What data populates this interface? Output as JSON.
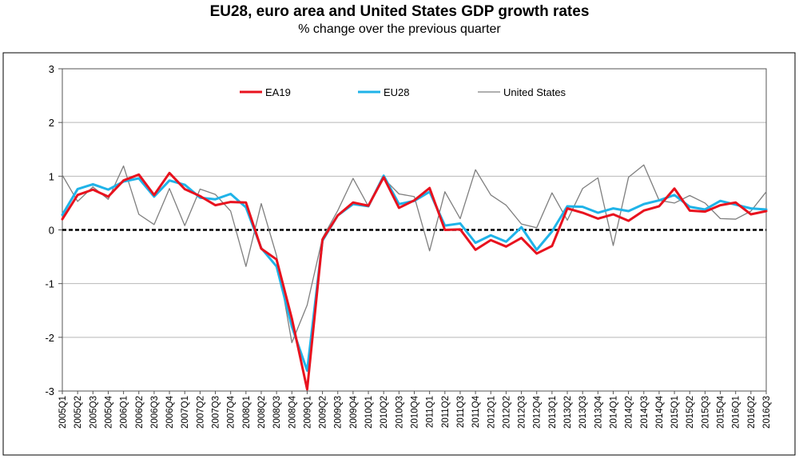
{
  "chart_data": {
    "type": "line",
    "title": "EU28, euro area and United States GDP growth rates",
    "subtitle": "% change over the previous quarter",
    "xlabel": "",
    "ylabel": "",
    "ylim": [
      -3,
      3
    ],
    "yticks": [
      "3",
      "2",
      "1",
      "0",
      "-1",
      "-2",
      "-3"
    ],
    "grid": true,
    "legend_position": "top",
    "categories": [
      "2005Q1",
      "2005Q2",
      "2005Q3",
      "2005Q4",
      "2006Q1",
      "2006Q2",
      "2006Q3",
      "2006Q4",
      "2007Q1",
      "2007Q2",
      "2007Q3",
      "2007Q4",
      "2008Q1",
      "2008Q2",
      "2008Q3",
      "2008Q4",
      "2009Q1",
      "2009Q2",
      "2009Q3",
      "2009Q4",
      "2010Q1",
      "2010Q2",
      "2010Q3",
      "2010Q4",
      "2011Q1",
      "2011Q2",
      "2011Q3",
      "2011Q4",
      "2012Q1",
      "2012Q2",
      "2012Q3",
      "2012Q4",
      "2013Q1",
      "2013Q2",
      "2013Q3",
      "2013Q4",
      "2014Q1",
      "2014Q2",
      "2014Q3",
      "2014Q4",
      "2015Q1",
      "2015Q2",
      "2015Q3",
      "2015Q4",
      "2016Q1",
      "2016Q2",
      "2016Q3"
    ],
    "x_tick_labels": [
      "2005Q1",
      "2005Q2",
      "2005Q3",
      "2005Q4",
      "2006Q1",
      "2006Q2",
      "2006Q3",
      "2006Q4",
      "2007Q1",
      "2007Q2",
      "2007Q3",
      "2007Q4",
      "2008Q1",
      "2008Q2",
      "2008Q3",
      "2008Q4",
      "2009Q1",
      "2009Q2",
      "2009Q3",
      "2009Q4",
      "2010Q1",
      "2010Q2",
      "2010Q3",
      "2010Q4",
      "2011Q1",
      "2011Q2",
      "2011Q3",
      "2011Q4",
      "2012Q1",
      "2012Q2",
      "2012Q3",
      "2012Q4",
      "2013Q1",
      "2013Q2",
      "2013Q3",
      "2013Q4",
      "2014Q1",
      "2014Q2",
      "2014Q3",
      "2014Q4",
      "2015Q1",
      "2015Q2",
      "2015Q3",
      "2015Q4",
      "2016Q1",
      "2016Q2",
      "2016Q3"
    ],
    "series": [
      {
        "name": "EA19",
        "color": "#e8121e",
        "values": [
          0.2,
          0.65,
          0.75,
          0.62,
          0.92,
          1.03,
          0.65,
          1.06,
          0.76,
          0.63,
          0.46,
          0.52,
          0.51,
          -0.35,
          -0.55,
          -1.65,
          -2.97,
          -0.18,
          0.27,
          0.51,
          0.45,
          0.98,
          0.41,
          0.55,
          0.78,
          0.0,
          0.01,
          -0.37,
          -0.19,
          -0.31,
          -0.15,
          -0.44,
          -0.3,
          0.4,
          0.32,
          0.21,
          0.29,
          0.17,
          0.36,
          0.44,
          0.77,
          0.36,
          0.34,
          0.46,
          0.51,
          0.29,
          0.35
        ]
      },
      {
        "name": "EU28",
        "color": "#1fb3e8",
        "values": [
          0.28,
          0.76,
          0.85,
          0.75,
          0.9,
          0.96,
          0.62,
          0.92,
          0.84,
          0.6,
          0.57,
          0.67,
          0.42,
          -0.34,
          -0.68,
          -1.8,
          -2.62,
          -0.2,
          0.27,
          0.48,
          0.44,
          1.01,
          0.48,
          0.54,
          0.71,
          0.08,
          0.12,
          -0.24,
          -0.1,
          -0.22,
          0.05,
          -0.37,
          -0.03,
          0.44,
          0.43,
          0.32,
          0.4,
          0.35,
          0.48,
          0.55,
          0.65,
          0.43,
          0.38,
          0.54,
          0.47,
          0.4,
          0.38
        ]
      },
      {
        "name": "United States",
        "color": "#7f7f7f",
        "values": [
          1.02,
          0.53,
          0.8,
          0.57,
          1.19,
          0.29,
          0.1,
          0.77,
          0.08,
          0.76,
          0.66,
          0.35,
          -0.68,
          0.49,
          -0.48,
          -2.1,
          -1.4,
          -0.15,
          0.36,
          0.96,
          0.44,
          0.96,
          0.67,
          0.62,
          -0.39,
          0.71,
          0.21,
          1.12,
          0.65,
          0.46,
          0.11,
          0.04,
          0.69,
          0.18,
          0.77,
          0.97,
          -0.29,
          0.98,
          1.21,
          0.55,
          0.5,
          0.64,
          0.5,
          0.21,
          0.2,
          0.35,
          0.71
        ]
      }
    ]
  }
}
